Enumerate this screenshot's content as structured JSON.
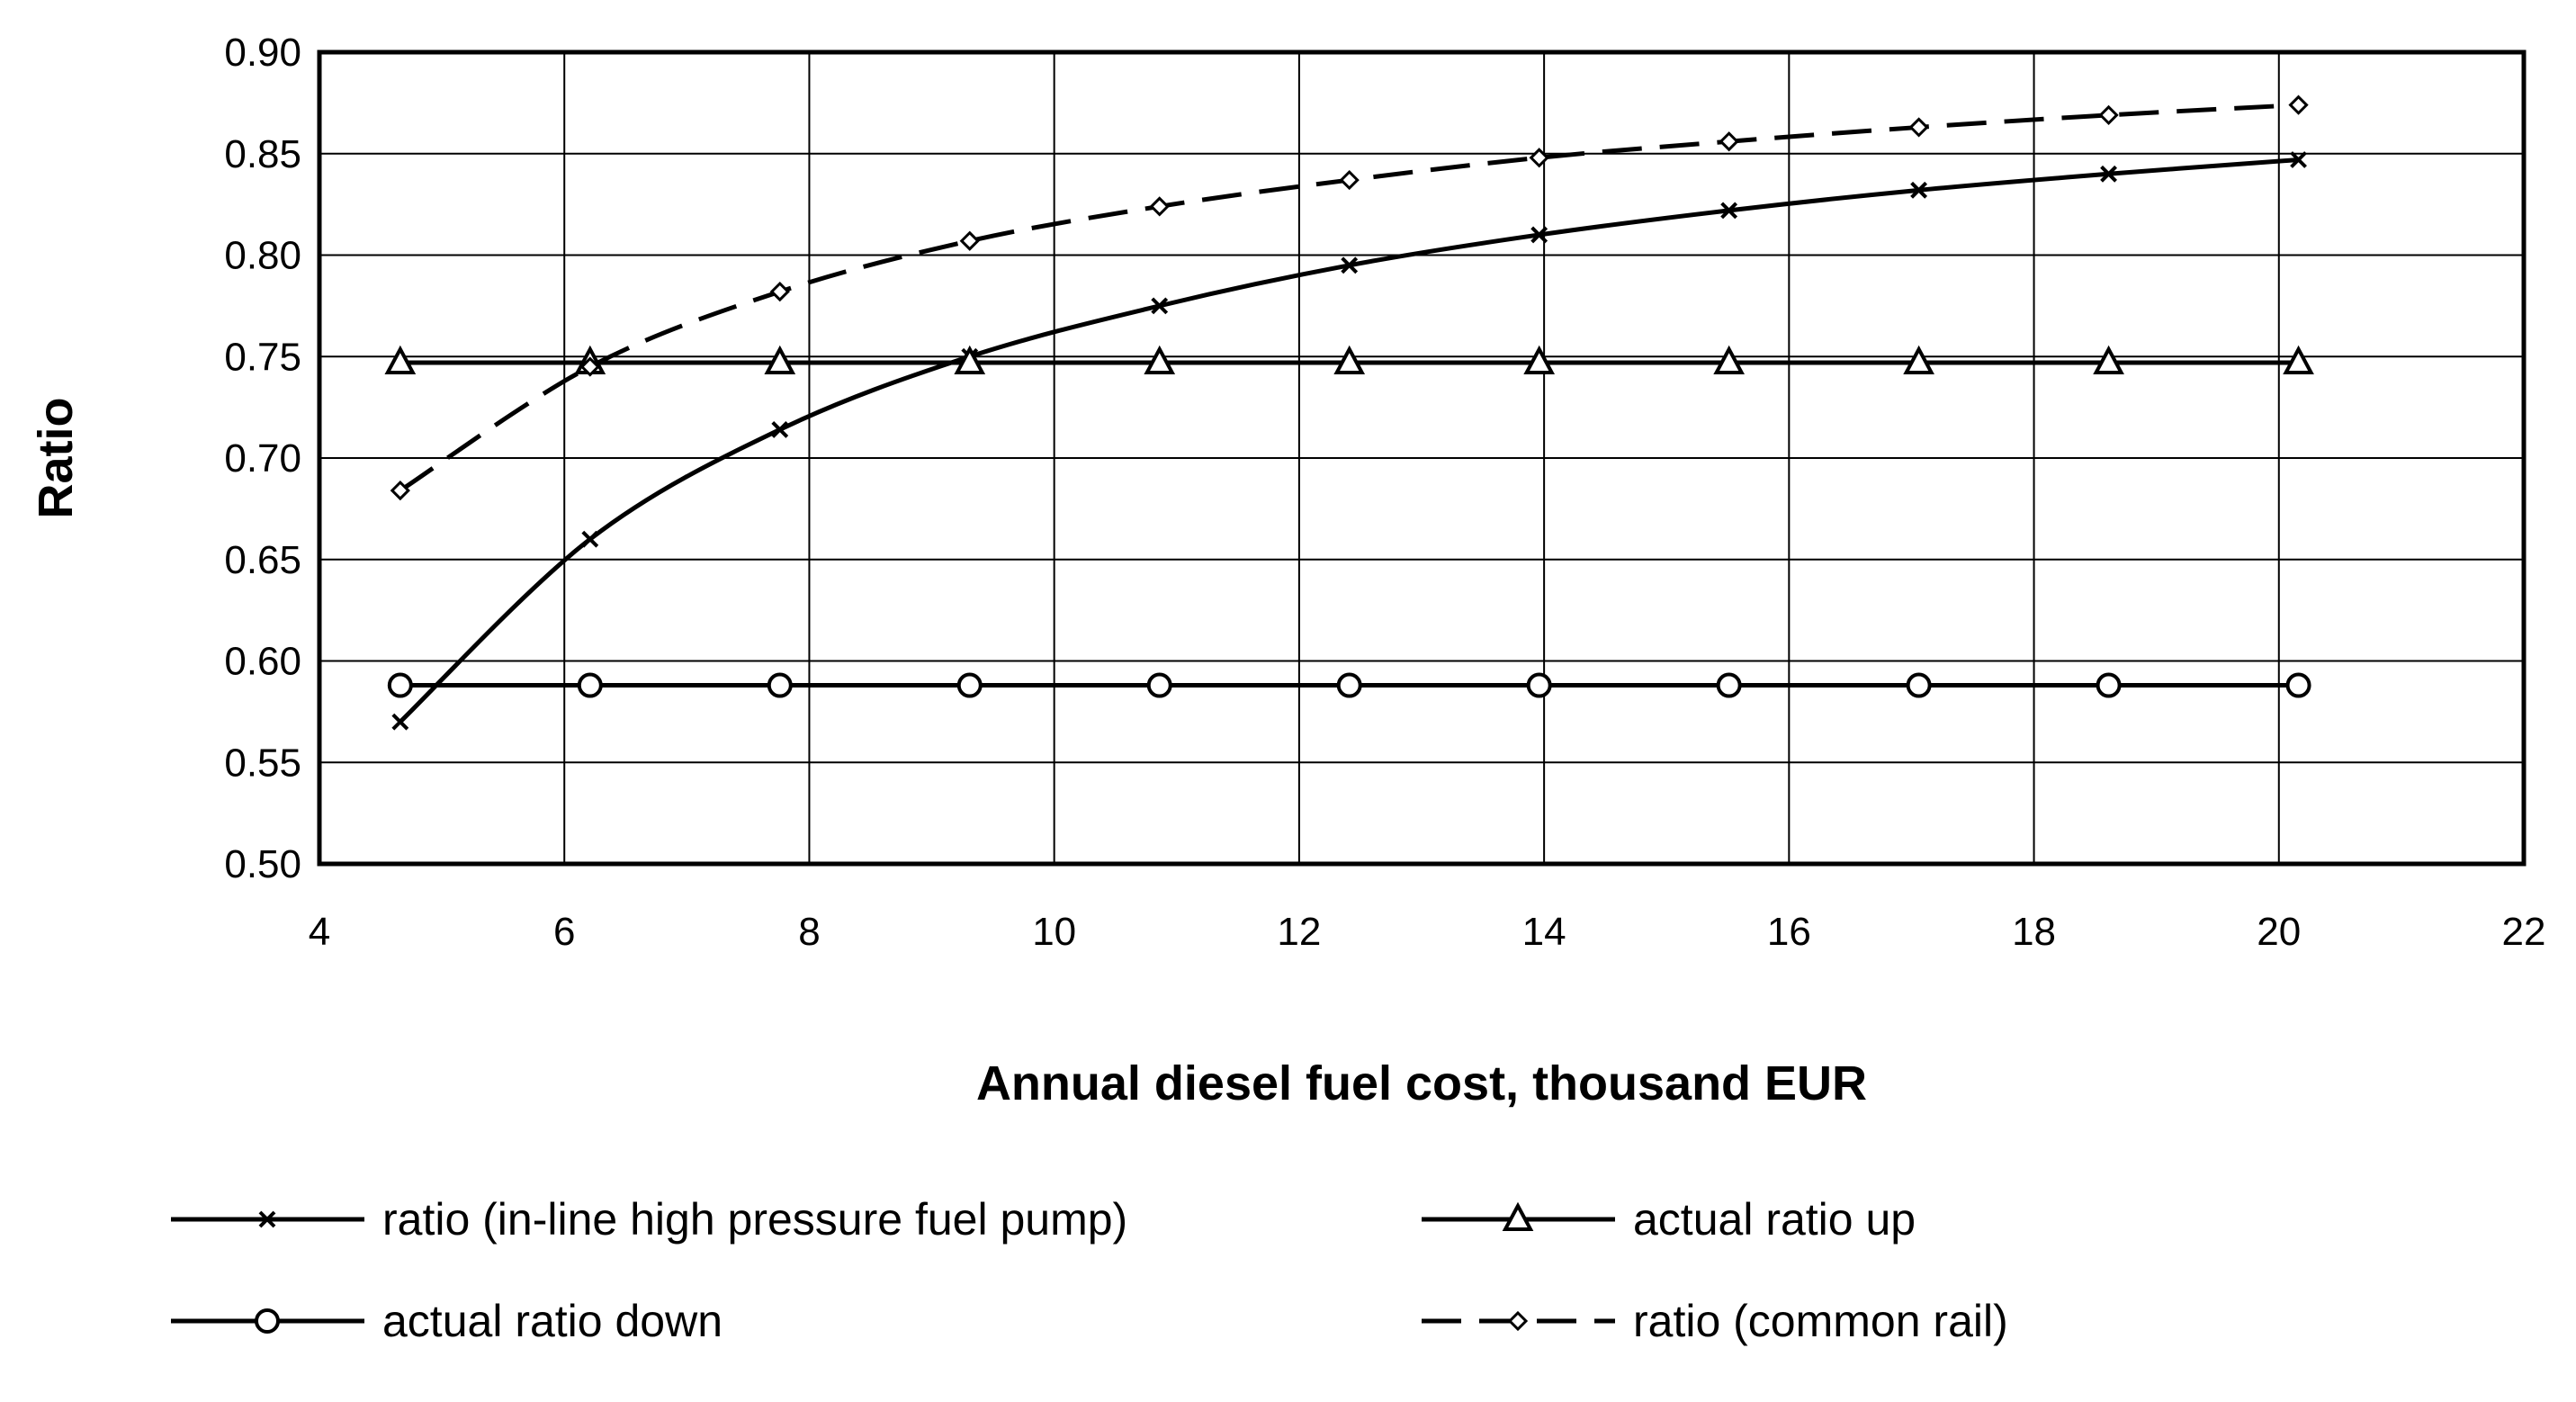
{
  "chart_data": {
    "type": "line",
    "title": "",
    "xlabel": "Annual diesel fuel cost, thousand EUR",
    "ylabel": "Ratio",
    "xlim": [
      4,
      22
    ],
    "ylim": [
      0.5,
      0.9
    ],
    "xticks": [
      "4",
      "6",
      "8",
      "10",
      "12",
      "14",
      "16",
      "18",
      "20",
      "22"
    ],
    "yticks": [
      "0.50",
      "0.55",
      "0.60",
      "0.65",
      "0.70",
      "0.75",
      "0.80",
      "0.85",
      "0.90"
    ],
    "grid": true,
    "legend_position": "bottom",
    "x": [
      4.66,
      6.21,
      7.76,
      9.31,
      10.86,
      12.41,
      13.96,
      15.51,
      17.06,
      18.61,
      20.16
    ],
    "series": [
      {
        "name": "ratio (in-line high pressure fuel pump)",
        "style": "solid",
        "marker": "x",
        "values": [
          0.57,
          0.66,
          0.714,
          0.75,
          0.775,
          0.795,
          0.81,
          0.822,
          0.832,
          0.84,
          0.847
        ]
      },
      {
        "name": "actual ratio up",
        "style": "solid",
        "marker": "triangle",
        "values": [
          0.747,
          0.747,
          0.747,
          0.747,
          0.747,
          0.747,
          0.747,
          0.747,
          0.747,
          0.747,
          0.747
        ]
      },
      {
        "name": "actual ratio down",
        "style": "solid",
        "marker": "circle",
        "values": [
          0.588,
          0.588,
          0.588,
          0.588,
          0.588,
          0.588,
          0.588,
          0.588,
          0.588,
          0.588,
          0.588
        ]
      },
      {
        "name": "ratio (common rail)",
        "style": "dashed",
        "marker": "diamond",
        "values": [
          0.684,
          0.745,
          0.782,
          0.807,
          0.824,
          0.837,
          0.848,
          0.856,
          0.863,
          0.869,
          0.874
        ]
      }
    ]
  }
}
